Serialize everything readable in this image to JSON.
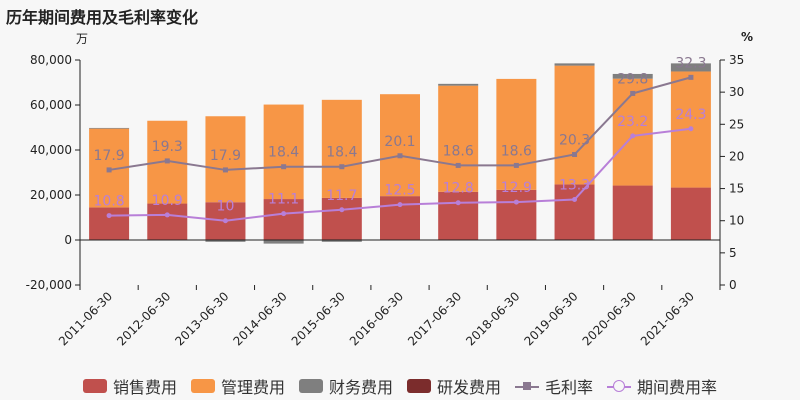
{
  "title": "历年期间费用及毛利率变化",
  "left_unit": "万",
  "right_unit": "%",
  "legend": {
    "selling": "销售费用",
    "admin": "管理费用",
    "finance": "财务费用",
    "rnd": "研发费用",
    "gross_margin": "毛利率",
    "expense_rate": "期间费用率"
  },
  "colors": {
    "selling": "#c0504d",
    "admin": "#f79646",
    "finance": "#7f7f7f",
    "rnd": "#7b2c2c",
    "gross_margin": "#8a7890",
    "expense_rate": "#b87fd8"
  },
  "chart_data": {
    "type": "bar",
    "categories": [
      "2011-06-30",
      "2012-06-30",
      "2013-06-30",
      "2014-06-30",
      "2015-06-30",
      "2016-06-30",
      "2017-06-30",
      "2018-06-30",
      "2019-06-30",
      "2020-06-30",
      "2021-06-30"
    ],
    "series": [
      {
        "name": "销售费用",
        "values": [
          14500,
          16200,
          16800,
          18200,
          18700,
          19500,
          21400,
          22300,
          24700,
          24200,
          23300
        ]
      },
      {
        "name": "管理费用",
        "values": [
          35000,
          36800,
          38200,
          42000,
          43600,
          45300,
          47200,
          49300,
          52800,
          47500,
          51600
        ]
      },
      {
        "name": "财务费用",
        "values": [
          300,
          0,
          -800,
          -1600,
          -800,
          0,
          800,
          0,
          1000,
          2100,
          3600
        ]
      },
      {
        "name": "研发费用",
        "values": [
          0,
          0,
          0,
          0,
          0,
          0,
          0,
          0,
          0,
          0,
          0
        ]
      },
      {
        "name": "毛利率",
        "values": [
          17.9,
          19.3,
          17.9,
          18.4,
          18.4,
          20.1,
          18.6,
          18.6,
          20.3,
          29.8,
          32.3
        ],
        "labels": [
          "17.9",
          "19.3",
          "17.9",
          "18.4",
          "18.4",
          "20.1",
          "18.6",
          "18.6",
          "20.3",
          "29.8",
          "32.3"
        ]
      },
      {
        "name": "期间费用率",
        "values": [
          10.8,
          10.9,
          10,
          11.1,
          11.7,
          12.5,
          12.8,
          12.9,
          13.3,
          23.2,
          24.3
        ],
        "labels": [
          "10.8",
          "10.9",
          "10",
          "11.1",
          "11.7",
          "12.5",
          "12.8",
          "12.9",
          "13.3",
          "23.2",
          "24.3"
        ]
      }
    ],
    "y_left": {
      "min": -20000,
      "max": 80000,
      "ticks": [
        "-20,000",
        "0",
        "20,000",
        "40,000",
        "60,000",
        "80,000"
      ]
    },
    "y_right": {
      "min": 0,
      "max": 35,
      "ticks": [
        "0",
        "5",
        "10",
        "15",
        "20",
        "25",
        "30",
        "35"
      ]
    },
    "legend_position": "bottom"
  }
}
